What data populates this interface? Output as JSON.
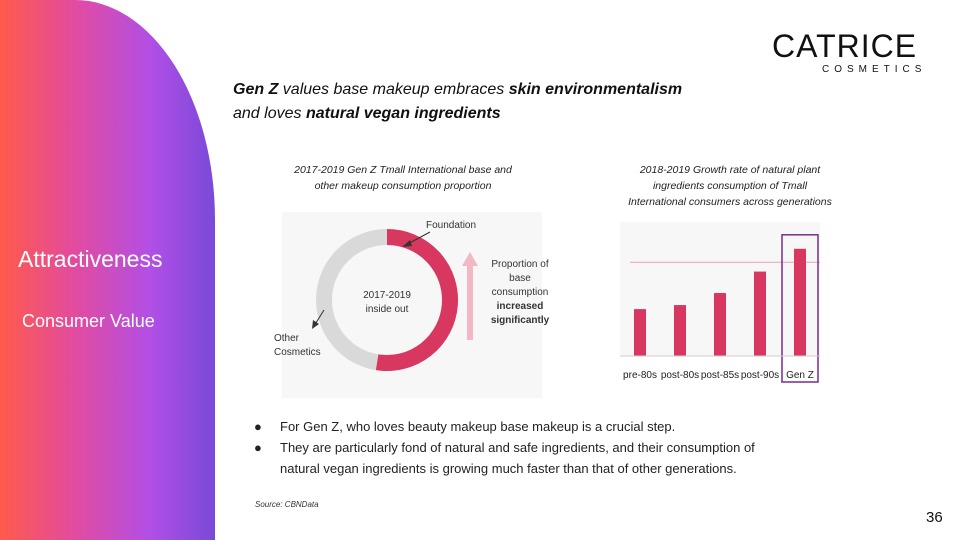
{
  "sidebar": {
    "title": "Attractiveness",
    "subtitle": "Consumer Value"
  },
  "logo": {
    "main": "CATRICE",
    "sub": "COSMETICS"
  },
  "headline": {
    "l1_b1": "Gen Z",
    "l1_t1": " values base makeup embraces ",
    "l1_b2": "skin environmentalism",
    "l2_t1": "and loves ",
    "l2_b1": "natural vegan ingredients"
  },
  "donut": {
    "title_l1": "2017-2019 Gen Z Tmall International base and",
    "title_l2": "other makeup consumption proportion",
    "center_l1": "2017-2019",
    "center_l2": "inside out",
    "label_foundation": "Foundation",
    "label_other_l1": "Other",
    "label_other_l2": "Cosmetics",
    "annot_l1": "Proportion of",
    "annot_l2": "base",
    "annot_l3": "consumption",
    "annot_l4": "increased",
    "annot_l5": "significantly",
    "colors": {
      "base": "#d8375f",
      "other": "#d9d9d9",
      "arrow": "#f2b8c4"
    }
  },
  "chart_data": {
    "type": "bar",
    "title": "2018-2019 Growth rate of natural plant ingredients consumption of Tmall International consumers across generations",
    "title_l1": "2018-2019 Growth rate of natural plant",
    "title_l2": "ingredients consumption of Tmall",
    "title_l3": "International consumers across generations",
    "categories": [
      "pre-80s",
      "post-80s",
      "post-85s",
      "post-90s",
      "Gen Z"
    ],
    "values": [
      35,
      38,
      47,
      63,
      80
    ],
    "ylim": [
      0,
      100
    ],
    "reference_line": 70,
    "highlight": "Gen Z",
    "colors": {
      "bar": "#d8375f",
      "highlight_box": "#7b2a8f",
      "reference": "#e9a3b3"
    }
  },
  "bullets": [
    "For Gen Z, who loves beauty makeup base makeup is a crucial step.",
    "They are particularly fond of natural and safe ingredients, and their consumption of",
    "natural vegan ingredients is growing much faster than that of other generations."
  ],
  "bullet_marker": "●",
  "source": "Source: CBNData",
  "page_number": "36"
}
